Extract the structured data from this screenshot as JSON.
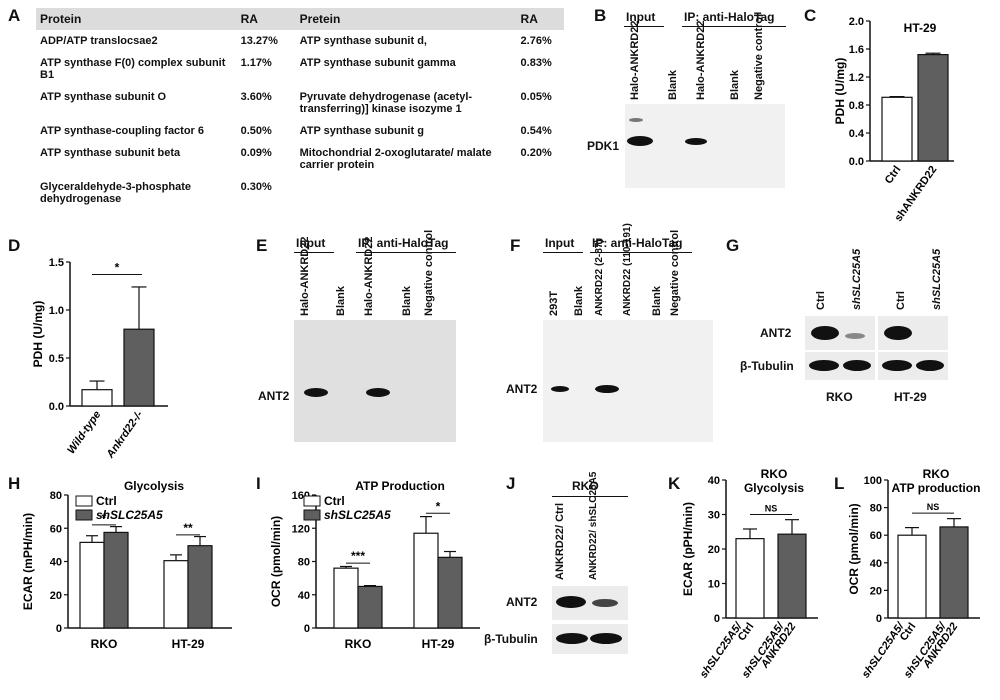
{
  "panels": {
    "A": "A",
    "B": "B",
    "C": "C",
    "D": "D",
    "E": "E",
    "F": "F",
    "G": "G",
    "H": "H",
    "I": "I",
    "J": "J",
    "K": "K",
    "L": "L"
  },
  "tableA": {
    "headers": [
      "Protein",
      "RA",
      "Pretein",
      "RA"
    ],
    "left": [
      {
        "name": "ADP/ATP translocsae2",
        "ra": "13.27%"
      },
      {
        "name": "ATP synthase F(0) complex subunit B1",
        "ra": "1.17%"
      },
      {
        "name": "ATP synthase subunit O",
        "ra": "3.60%"
      },
      {
        "name": "ATP synthase-coupling factor 6",
        "ra": "0.50%"
      },
      {
        "name": "ATP synthase subunit beta",
        "ra": "0.09%"
      },
      {
        "name": "Glyceraldehyde-3-phosphate dehydrogenase",
        "ra": "0.30%"
      }
    ],
    "right": [
      {
        "name": "ATP synthase subunit d,",
        "ra": "2.76%"
      },
      {
        "name": "ATP synthase subunit gamma",
        "ra": "0.83%"
      },
      {
        "name": "Pyruvate dehydrogenase (acetyl-transferring)] kinase isozyme 1",
        "ra": "0.05%"
      },
      {
        "name": "ATP synthase subunit g",
        "ra": "0.54%"
      },
      {
        "name": "Mitochondrial 2-oxoglutarate/ malate carrier protein",
        "ra": "0.20%"
      }
    ]
  },
  "blotB": {
    "input": "Input",
    "ip": "IP: anti-HaloTag",
    "lanes": [
      "Halo-ANKRD22",
      "Blank",
      "Halo-ANKRD22",
      "Blank",
      "Negative control"
    ],
    "band": "PDK1"
  },
  "blotE": {
    "input": "Input",
    "ip": "IP: anti-HaloTag",
    "lanes": [
      "Halo-ANKRD22",
      "Blank",
      "Halo-ANKRD22",
      "Blank",
      "Negative control"
    ],
    "band": "ANT2"
  },
  "blotF": {
    "input": "Input",
    "ip": "IP: anti-HaloTag",
    "lanes": [
      "293T",
      "Blank",
      "ANKRD22 (2-87)",
      "ANKRD22 (110-191)",
      "Blank",
      "Negative control"
    ],
    "band": "ANT2"
  },
  "blotG": {
    "lanes": [
      "Ctrl",
      "shSLC25A5",
      "Ctrl",
      "shSLC25A5"
    ],
    "rows": [
      "ANT2",
      "β-Tubulin"
    ],
    "cells": [
      "RKO",
      "HT-29"
    ]
  },
  "blotJ": {
    "cell": "RKO",
    "lanes": [
      "ANKRD22/ Ctrl",
      "ANKRD22/ shSLC25A5"
    ],
    "rows": [
      "ANT2",
      "β-Tubulin"
    ]
  },
  "chart_data": [
    {
      "panel": "C",
      "type": "bar",
      "title": "HT-29",
      "ylabel": "PDH (U/mg)",
      "categories": [
        "Ctrl",
        "shANKRD22"
      ],
      "values": [
        0.91,
        1.52
      ],
      "errors": [
        0.01,
        0.02
      ],
      "ylim": [
        0,
        2.0
      ],
      "yticks": [
        "0.0",
        "0.4",
        "0.8",
        "1.2",
        "1.6",
        "2.0"
      ]
    },
    {
      "panel": "D",
      "type": "bar",
      "title": "",
      "ylabel": "PDH (U/mg)",
      "categories": [
        "Wild-type",
        "Ankrd22-/-"
      ],
      "values": [
        0.17,
        0.8
      ],
      "errors": [
        0.09,
        0.44
      ],
      "ylim": [
        0,
        1.5
      ],
      "yticks": [
        "0.0",
        "0.5",
        "1.0",
        "1.5"
      ],
      "sig": "*"
    },
    {
      "panel": "H",
      "type": "bar",
      "title": "Glycolysis",
      "ylabel": "ECAR (mPH/min)",
      "groups": [
        "RKO",
        "HT-29"
      ],
      "series": [
        {
          "name": "Ctrl",
          "values": [
            51.5,
            40.5
          ],
          "errors": [
            4,
            3.5
          ]
        },
        {
          "name": "shSLC25A5",
          "values": [
            57.5,
            49.5
          ],
          "errors": [
            3.5,
            5.5
          ]
        }
      ],
      "ylim": [
        0,
        80
      ],
      "yticks": [
        "0",
        "20",
        "40",
        "60",
        "80"
      ],
      "sig": [
        "*",
        "**"
      ]
    },
    {
      "panel": "I",
      "type": "bar",
      "title": "ATP Production",
      "ylabel": "OCR (pmol/min)",
      "groups": [
        "RKO",
        "HT-29"
      ],
      "series": [
        {
          "name": "Ctrl",
          "values": [
            72,
            114
          ],
          "errors": [
            2,
            20
          ]
        },
        {
          "name": "shSLC25A5",
          "values": [
            50,
            85
          ],
          "errors": [
            1,
            7
          ]
        }
      ],
      "ylim": [
        0,
        160
      ],
      "yticks": [
        "0",
        "40",
        "80",
        "120",
        "160"
      ],
      "sig": [
        "***",
        "*"
      ]
    },
    {
      "panel": "K",
      "type": "bar",
      "title": "RKO Glycolysis",
      "ylabel": "ECAR (pPH/min)",
      "categories": [
        "shSLC25A5/ Ctrl",
        "shSLC25A5/ ANKRD22"
      ],
      "values": [
        23,
        24.3
      ],
      "errors": [
        2.8,
        4.2
      ],
      "ylim": [
        0,
        40
      ],
      "yticks": [
        "0",
        "10",
        "20",
        "30",
        "40"
      ],
      "sig": "NS"
    },
    {
      "panel": "L",
      "type": "bar",
      "title": "RKO ATP production",
      "ylabel": "OCR (pmol/min)",
      "categories": [
        "shSLC25A5/ Ctrl",
        "shSLC25A5/ ANKRD22"
      ],
      "values": [
        60,
        66
      ],
      "errors": [
        5.5,
        6
      ],
      "ylim": [
        0,
        100
      ],
      "yticks": [
        "0",
        "20",
        "40",
        "60",
        "80",
        "100"
      ],
      "sig": "NS"
    }
  ]
}
